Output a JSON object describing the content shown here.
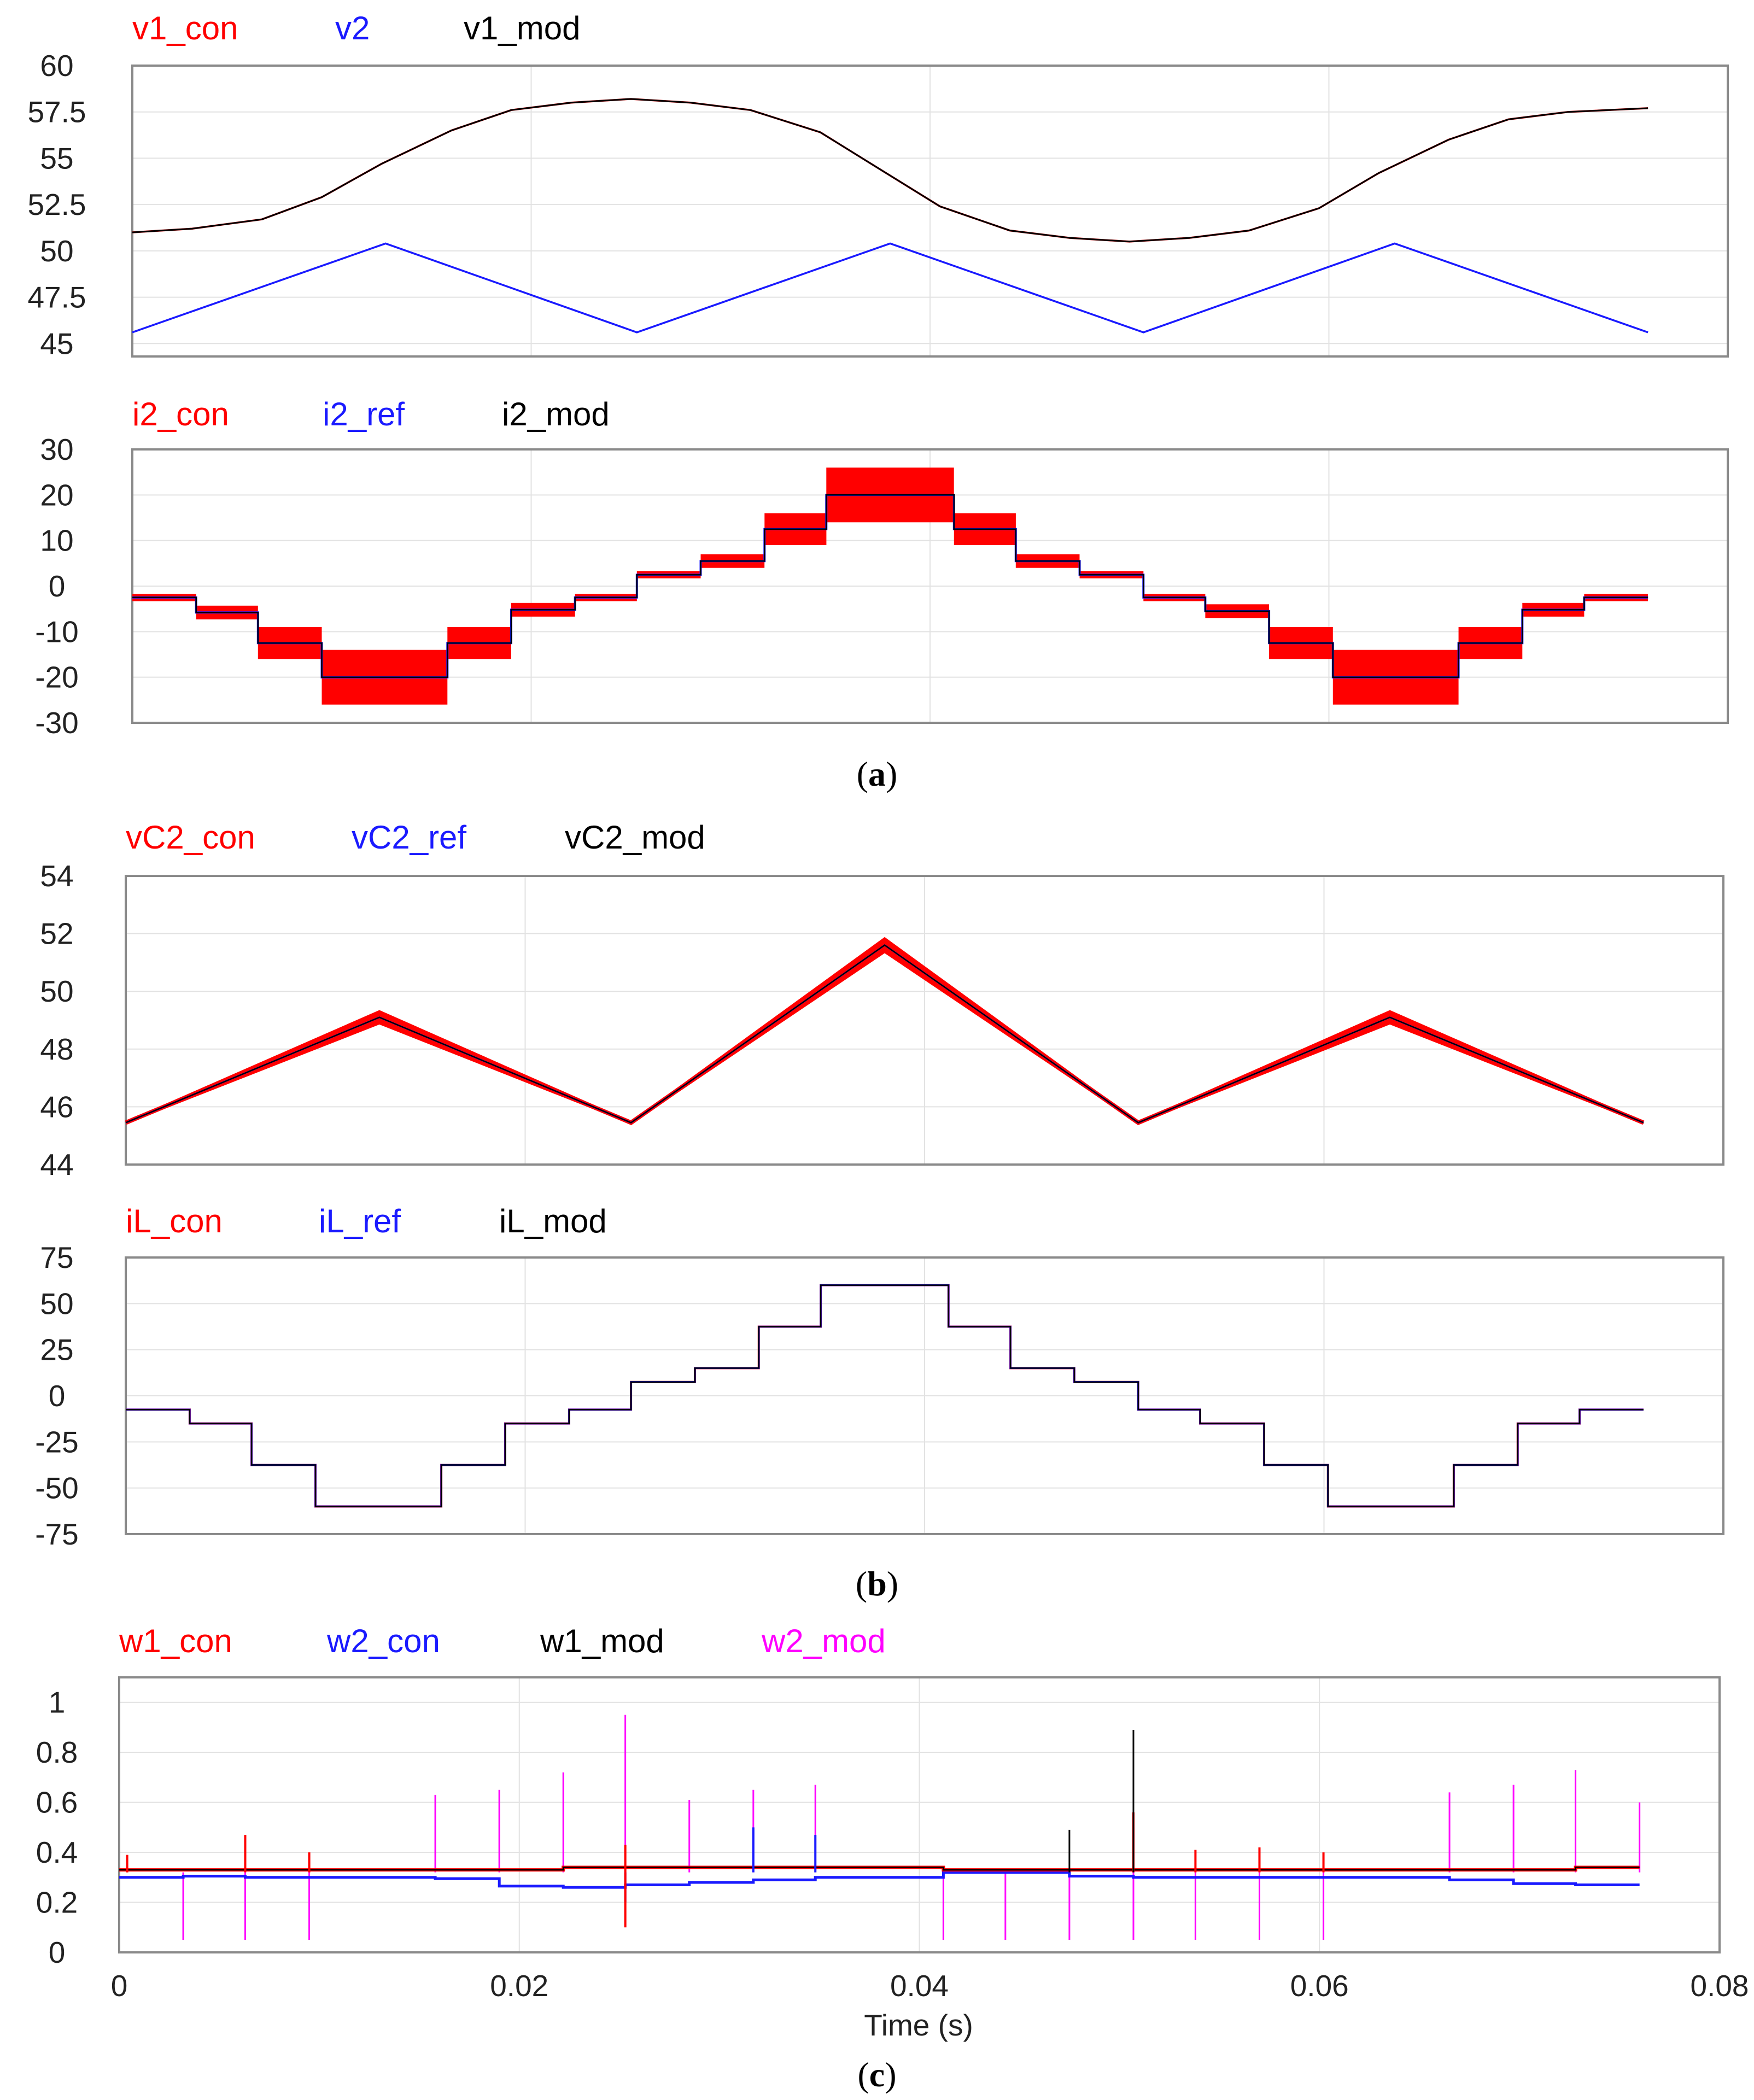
{
  "figure": {
    "captions": [
      "(a)",
      "(b)",
      "(c)"
    ],
    "caption_letters": [
      "a",
      "b",
      "c"
    ],
    "x_axis": {
      "label": "Time (s)",
      "range": [
        0,
        0.08
      ],
      "ticks": [
        "0",
        "0.02",
        "0.04",
        "0.06",
        "0.08"
      ],
      "tick_values": [
        0,
        0.02,
        0.04,
        0.06,
        0.08
      ]
    },
    "colors": {
      "red": "#ff0000",
      "blue": "#1a1aff",
      "black": "#000000",
      "magenta": "#ff00ff",
      "frame": "#8a8a8a",
      "grid": "#e2e2e2"
    }
  },
  "chart_data": [
    {
      "id": "v",
      "type": "line",
      "x_range": [
        0,
        0.076
      ],
      "ylim": [
        44.3,
        60
      ],
      "yticks": [
        "60",
        "57.5",
        "55",
        "52.5",
        "50",
        "47.5",
        "45"
      ],
      "ytick_values": [
        60,
        57.5,
        55,
        52.5,
        50,
        47.5,
        45
      ],
      "legend": [
        {
          "name": "v1_con",
          "color": "#ff0000"
        },
        {
          "name": "v2",
          "color": "#1a1aff"
        },
        {
          "name": "v1_mod",
          "color": "#000000"
        }
      ],
      "series": [
        {
          "name": "v1_con",
          "color": "#ff0000",
          "x": [
            0,
            0.003,
            0.0065,
            0.0095,
            0.0125,
            0.016,
            0.019,
            0.022,
            0.025,
            0.028,
            0.031,
            0.0345,
            0.0375,
            0.0405,
            0.044,
            0.047,
            0.05,
            0.053,
            0.056,
            0.0595,
            0.0625,
            0.066,
            0.069,
            0.072,
            0.076
          ],
          "y": [
            51.0,
            51.2,
            51.7,
            52.9,
            54.7,
            56.5,
            57.6,
            58.0,
            58.2,
            58.0,
            57.6,
            56.4,
            54.4,
            52.4,
            51.1,
            50.7,
            50.5,
            50.7,
            51.1,
            52.3,
            54.2,
            56.0,
            57.1,
            57.5,
            57.7
          ]
        },
        {
          "name": "v2",
          "color": "#1a1aff",
          "x": [
            0,
            0.0127,
            0.0253,
            0.038,
            0.0507,
            0.0633,
            0.076
          ],
          "y": [
            45.6,
            50.4,
            45.6,
            50.4,
            45.6,
            50.4,
            45.6
          ]
        },
        {
          "name": "v1_mod",
          "color": "#000000",
          "x": [
            0,
            0.003,
            0.0065,
            0.0095,
            0.0125,
            0.016,
            0.019,
            0.022,
            0.025,
            0.028,
            0.031,
            0.0345,
            0.0375,
            0.0405,
            0.044,
            0.047,
            0.05,
            0.053,
            0.056,
            0.0595,
            0.0625,
            0.066,
            0.069,
            0.072,
            0.076
          ],
          "y": [
            51.0,
            51.2,
            51.7,
            52.9,
            54.7,
            56.5,
            57.6,
            58.0,
            58.2,
            58.0,
            57.6,
            56.4,
            54.4,
            52.4,
            51.1,
            50.7,
            50.5,
            50.7,
            51.1,
            52.3,
            54.2,
            56.0,
            57.1,
            57.5,
            57.7
          ]
        }
      ]
    },
    {
      "id": "i2",
      "type": "step",
      "x_range": [
        0,
        0.076
      ],
      "ylim": [
        -30,
        30
      ],
      "yticks": [
        "30",
        "20",
        "10",
        "0",
        "-10",
        "-20",
        "-30"
      ],
      "ytick_values": [
        30,
        20,
        10,
        0,
        -10,
        -20,
        -30
      ],
      "legend": [
        {
          "name": "i2_con",
          "color": "#ff0000"
        },
        {
          "name": "i2_ref",
          "color": "#1a1aff"
        },
        {
          "name": "i2_mod",
          "color": "#000000"
        }
      ],
      "steps": {
        "x": [
          0,
          0.0032,
          0.0063,
          0.0095,
          0.0158,
          0.019,
          0.0222,
          0.0253,
          0.0285,
          0.0317,
          0.0348,
          0.0412,
          0.0443,
          0.0475,
          0.0507,
          0.0538,
          0.057,
          0.0602,
          0.0665,
          0.0697,
          0.0728,
          0.076
        ],
        "y": [
          -2.5,
          -5.8,
          -12.5,
          -20,
          -12.5,
          -5.2,
          -2.5,
          2.5,
          5.5,
          12.5,
          20,
          12.5,
          5.5,
          2.5,
          -2.5,
          -5.5,
          -12.5,
          -20,
          -12.5,
          -5.2,
          -2.5
        ],
        "ripple": [
          0.8,
          1.5,
          3.5,
          6.0,
          3.5,
          1.5,
          0.8,
          0.8,
          1.5,
          3.5,
          6.0,
          3.5,
          1.5,
          0.8,
          0.8,
          1.5,
          3.5,
          6.0,
          3.5,
          1.5,
          0.8
        ]
      }
    },
    {
      "id": "vC2",
      "type": "line",
      "x_range": [
        0,
        0.076
      ],
      "ylim": [
        44,
        54
      ],
      "yticks": [
        "54",
        "52",
        "50",
        "48",
        "46",
        "44"
      ],
      "ytick_values": [
        54,
        52,
        50,
        48,
        46,
        44
      ],
      "legend": [
        {
          "name": "vC2_con",
          "color": "#ff0000"
        },
        {
          "name": "vC2_ref",
          "color": "#1a1aff"
        },
        {
          "name": "vC2_mod",
          "color": "#000000"
        }
      ],
      "series": [
        {
          "name": "vC2_mod",
          "color": "#000000",
          "x": [
            0,
            0.0127,
            0.0253,
            0.038,
            0.0507,
            0.0633,
            0.076
          ],
          "y": [
            45.45,
            49.1,
            45.45,
            51.6,
            45.45,
            49.1,
            45.45
          ]
        }
      ],
      "ripple_band": [
        0.05,
        0.25,
        0.05,
        0.28,
        0.05,
        0.25,
        0.05
      ]
    },
    {
      "id": "iL",
      "type": "step",
      "x_range": [
        0,
        0.076
      ],
      "ylim": [
        -75,
        75
      ],
      "yticks": [
        "75",
        "50",
        "25",
        "0",
        "-25",
        "-50",
        "-75"
      ],
      "ytick_values": [
        75,
        50,
        25,
        0,
        -25,
        -50,
        -75
      ],
      "legend": [
        {
          "name": "iL_con",
          "color": "#ff0000"
        },
        {
          "name": "iL_ref",
          "color": "#1a1aff"
        },
        {
          "name": "iL_mod",
          "color": "#000000"
        }
      ],
      "steps": {
        "x": [
          0,
          0.0032,
          0.0063,
          0.0095,
          0.0158,
          0.019,
          0.0222,
          0.0253,
          0.0285,
          0.0317,
          0.0348,
          0.0412,
          0.0443,
          0.0475,
          0.0507,
          0.0538,
          0.057,
          0.0602,
          0.0665,
          0.0697,
          0.0728,
          0.076
        ],
        "y": [
          -7.5,
          -15,
          -37.5,
          -60,
          -37.5,
          -15,
          -7.5,
          7.5,
          15,
          37.5,
          60,
          37.5,
          15,
          7.5,
          -7.5,
          -15,
          -37.5,
          -60,
          -37.5,
          -15,
          -7.5
        ]
      }
    },
    {
      "id": "w",
      "type": "line",
      "x_range": [
        0,
        0.076
      ],
      "xlabel": "Time (s)",
      "ylim": [
        0,
        1.1
      ],
      "yticks": [
        "1",
        "0.8",
        "0.6",
        "0.4",
        "0.2",
        "0"
      ],
      "ytick_values": [
        1,
        0.8,
        0.6,
        0.4,
        0.2,
        0
      ],
      "legend": [
        {
          "name": "w1_con",
          "color": "#ff0000"
        },
        {
          "name": "w2_con",
          "color": "#1a1aff"
        },
        {
          "name": "w1_mod",
          "color": "#000000"
        },
        {
          "name": "w2_mod",
          "color": "#ff00ff"
        }
      ],
      "baseline": {
        "w1": [
          0.33,
          0.33,
          0.33,
          0.33,
          0.33,
          0.33,
          0.34,
          0.34,
          0.34,
          0.34,
          0.34,
          0.33,
          0.33,
          0.33,
          0.33,
          0.33,
          0.33,
          0.33,
          0.33,
          0.33,
          0.34
        ],
        "w2": [
          0.3,
          0.305,
          0.3,
          0.3,
          0.295,
          0.265,
          0.26,
          0.27,
          0.28,
          0.29,
          0.3,
          0.32,
          0.32,
          0.305,
          0.3,
          0.3,
          0.3,
          0.3,
          0.29,
          0.275,
          0.27
        ]
      },
      "spikes_w2_mod": [
        {
          "x": 0.0032,
          "y": 0.05
        },
        {
          "x": 0.0063,
          "y": 0.05
        },
        {
          "x": 0.0095,
          "y": 0.05
        },
        {
          "x": 0.0158,
          "y": 0.63
        },
        {
          "x": 0.019,
          "y": 0.65
        },
        {
          "x": 0.0222,
          "y": 0.72
        },
        {
          "x": 0.0253,
          "y": 0.95
        },
        {
          "x": 0.0285,
          "y": 0.61
        },
        {
          "x": 0.0317,
          "y": 0.65
        },
        {
          "x": 0.0348,
          "y": 0.67
        },
        {
          "x": 0.0412,
          "y": 0.05
        },
        {
          "x": 0.0443,
          "y": 0.05
        },
        {
          "x": 0.0475,
          "y": 0.05
        },
        {
          "x": 0.0507,
          "y": 0.05
        },
        {
          "x": 0.0538,
          "y": 0.05
        },
        {
          "x": 0.057,
          "y": 0.05
        },
        {
          "x": 0.0602,
          "y": 0.05
        },
        {
          "x": 0.0665,
          "y": 0.64
        },
        {
          "x": 0.0697,
          "y": 0.67
        },
        {
          "x": 0.0728,
          "y": 0.73
        },
        {
          "x": 0.076,
          "y": 0.6
        }
      ],
      "spikes_w1_con": [
        {
          "x": 0.0004,
          "y": 0.39
        },
        {
          "x": 0.0063,
          "y": 0.47
        },
        {
          "x": 0.0095,
          "y": 0.4
        },
        {
          "x": 0.0253,
          "y": 0.43
        },
        {
          "x": 0.0507,
          "y": 0.56
        },
        {
          "x": 0.0538,
          "y": 0.41
        },
        {
          "x": 0.057,
          "y": 0.42
        },
        {
          "x": 0.0602,
          "y": 0.4
        },
        {
          "x": 0.0253,
          "y": 0.1
        }
      ],
      "spikes_w2_con": [
        {
          "x": 0.0317,
          "y": 0.5
        },
        {
          "x": 0.0348,
          "y": 0.47
        },
        {
          "x": 0.0507,
          "y": 0.5
        },
        {
          "x": 0.0253,
          "y": 0.2
        }
      ],
      "spikes_w1_mod": [
        {
          "x": 0.0507,
          "y": 0.89
        },
        {
          "x": 0.0475,
          "y": 0.49
        }
      ]
    }
  ]
}
